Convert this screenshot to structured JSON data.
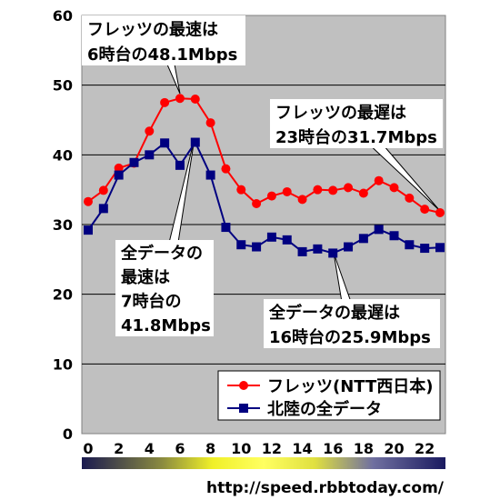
{
  "chart_data": {
    "type": "line",
    "x": [
      0,
      1,
      2,
      3,
      4,
      5,
      6,
      7,
      8,
      9,
      10,
      11,
      12,
      13,
      14,
      15,
      16,
      17,
      18,
      19,
      20,
      21,
      22,
      23
    ],
    "x_tick_labels": [
      "0",
      "2",
      "4",
      "6",
      "8",
      "10",
      "12",
      "14",
      "16",
      "18",
      "20",
      "22"
    ],
    "y_tick_labels": [
      "0",
      "10",
      "20",
      "30",
      "40",
      "50",
      "60"
    ],
    "ylim": [
      0,
      60
    ],
    "grid": true,
    "legend_position": "bottom-right",
    "series": [
      {
        "name": "フレッツ(NTT西日本)",
        "color": "#ff0000",
        "marker": "circle",
        "values": [
          33.3,
          34.9,
          38.1,
          38.8,
          43.4,
          47.5,
          48.1,
          48.0,
          44.6,
          38.0,
          35.0,
          33.0,
          34.1,
          34.7,
          33.6,
          35.0,
          34.9,
          35.3,
          34.5,
          36.3,
          35.3,
          33.8,
          32.2,
          31.7
        ]
      },
      {
        "name": "北陸の全データ",
        "color": "#000080",
        "marker": "square",
        "values": [
          29.2,
          32.3,
          37.1,
          38.9,
          40.0,
          41.7,
          38.5,
          41.8,
          37.1,
          29.6,
          27.1,
          26.8,
          28.2,
          27.8,
          26.1,
          26.5,
          25.9,
          26.8,
          28.0,
          29.3,
          28.4,
          27.1,
          26.6,
          26.7
        ]
      }
    ],
    "annotations": [
      {
        "lines": [
          "フレッツの最速は",
          "6時台の48.1Mbps"
        ],
        "x": 6,
        "y": 48.1
      },
      {
        "lines": [
          "フレッツの最遅は",
          "23時台の31.7Mbps"
        ],
        "x": 23,
        "y": 31.7
      },
      {
        "lines": [
          "全データの",
          "最速は",
          "7時台の",
          "41.8Mbps"
        ],
        "x": 7,
        "y": 41.8
      },
      {
        "lines": [
          "全データの最遅は",
          "16時台の25.9Mbps"
        ],
        "x": 16,
        "y": 25.9
      }
    ]
  },
  "source_url": "http://speed.rbbtoday.com/",
  "colors": {
    "plot_bg": "#c0c0c0",
    "gridline": "#000000"
  }
}
